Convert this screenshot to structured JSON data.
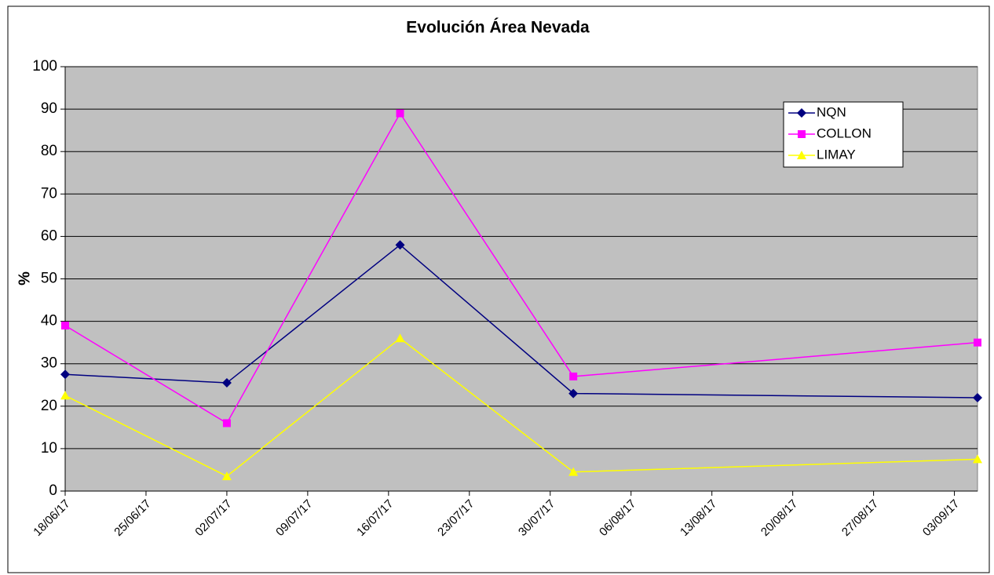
{
  "chart_data": {
    "type": "line",
    "title": "Evolución Área Nevada",
    "y_label": "%",
    "x": [
      "2017-06-18",
      "2017-07-02",
      "2017-07-17",
      "2017-08-01",
      "2017-09-05"
    ],
    "xlim": [
      "2017-06-18",
      "2017-09-05"
    ],
    "xticks": [
      {
        "value": "2017-06-18",
        "label": "18/06/17"
      },
      {
        "value": "2017-06-25",
        "label": "25/06/17"
      },
      {
        "value": "2017-07-02",
        "label": "02/07/17"
      },
      {
        "value": "2017-07-09",
        "label": "09/07/17"
      },
      {
        "value": "2017-07-16",
        "label": "16/07/17"
      },
      {
        "value": "2017-07-23",
        "label": "23/07/17"
      },
      {
        "value": "2017-07-30",
        "label": "30/07/17"
      },
      {
        "value": "2017-08-06",
        "label": "06/08/17"
      },
      {
        "value": "2017-08-13",
        "label": "13/08/17"
      },
      {
        "value": "2017-08-20",
        "label": "20/08/17"
      },
      {
        "value": "2017-08-27",
        "label": "27/08/17"
      },
      {
        "value": "2017-09-03",
        "label": "03/09/17"
      }
    ],
    "ylim": [
      0,
      100
    ],
    "yticks": [
      0,
      10,
      20,
      30,
      40,
      50,
      60,
      70,
      80,
      90,
      100
    ],
    "grid": true,
    "legend": "top-right",
    "series": [
      {
        "name": "NQN",
        "color": "#000080",
        "marker": "diamond",
        "values": [
          27.5,
          25.5,
          58,
          23,
          22
        ]
      },
      {
        "name": "COLLON",
        "color": "#ff00ff",
        "marker": "square",
        "values": [
          39,
          16,
          89,
          27,
          35
        ]
      },
      {
        "name": "LIMAY",
        "color": "#ffff00",
        "marker": "triangle",
        "values": [
          22.5,
          3.5,
          36,
          4.5,
          7.5
        ]
      }
    ]
  }
}
